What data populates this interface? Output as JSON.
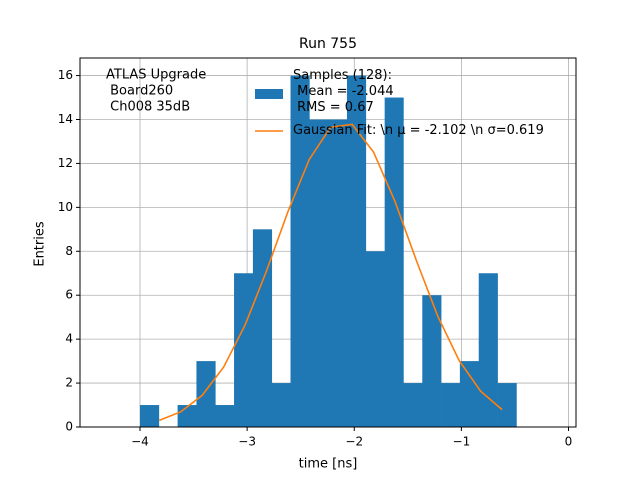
{
  "chart_data": {
    "type": "histogram",
    "title": "Run 755",
    "xlabel": "time [ns]",
    "ylabel": "Entries",
    "annotation": [
      "ATLAS Upgrade",
      " Board260",
      " Ch008 35dB"
    ],
    "name": "Samples (128):\n Mean = -2.044\n RMS = 0.67",
    "color": "#1f77b4",
    "bins": [
      -4.0,
      -3.824,
      -3.649,
      -3.473,
      -3.297,
      -3.122,
      -2.946,
      -2.77,
      -2.595,
      -2.419,
      -2.243,
      -2.068,
      -1.892,
      -1.716,
      -1.541,
      -1.365,
      -1.189,
      -1.014,
      -0.838,
      -0.662,
      -0.486
    ],
    "values": [
      1,
      0,
      1,
      3,
      1,
      7,
      9,
      2,
      16,
      14,
      14,
      16,
      8,
      15,
      2,
      6,
      2,
      3,
      7,
      2
    ],
    "fit": {
      "name": "Gaussian Fit: \\n μ = -2.102 \\n σ=0.619",
      "color": "#ff7f0e",
      "x": [
        -3.82,
        -3.62,
        -3.42,
        -3.22,
        -3.02,
        -2.82,
        -2.62,
        -2.42,
        -2.22,
        -2.02,
        -1.82,
        -1.62,
        -1.42,
        -1.22,
        -1.02,
        -0.82,
        -0.62
      ],
      "values": [
        0.3,
        0.69,
        1.44,
        2.72,
        4.63,
        7.09,
        9.79,
        12.18,
        13.65,
        13.78,
        12.52,
        10.27,
        7.58,
        5.04,
        3.02,
        1.63,
        0.79
      ]
    },
    "xlim": [
      -4.56,
      0.07
    ],
    "ylim": [
      0,
      16.8
    ],
    "xticks": [
      {
        "value": -4,
        "label": "−4"
      },
      {
        "value": -3,
        "label": "−3"
      },
      {
        "value": -2,
        "label": "−2"
      },
      {
        "value": -1,
        "label": "−1"
      },
      0
    ],
    "yticks": [
      0,
      2,
      4,
      6,
      8,
      10,
      12,
      14,
      16
    ],
    "grid": true,
    "legend": "upper center"
  }
}
